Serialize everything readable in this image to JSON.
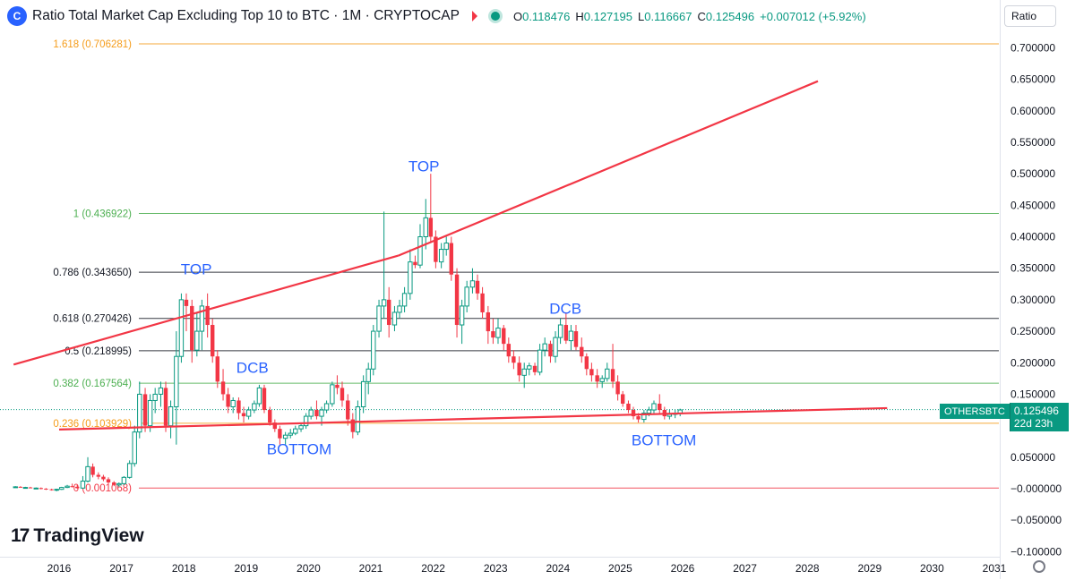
{
  "header": {
    "logo_glyph": "C",
    "title": "Ratio Total Market Cap Excluding Top 10 to BTC · 1M · CRYPTOCAP",
    "ohlc": [
      {
        "k": "O",
        "v": "0.118476"
      },
      {
        "k": "H",
        "v": "0.127195"
      },
      {
        "k": "L",
        "v": "0.116667"
      },
      {
        "k": "C",
        "v": "0.125496"
      }
    ],
    "change": "+0.007012 (+5.92%)",
    "icons": [
      "flag-icon",
      "live-dot-icon"
    ]
  },
  "scale_button": "Ratio",
  "branding": {
    "mark": "17",
    "text": "TradingView"
  },
  "price_tag": {
    "symbol": "OTHERSBTC",
    "value": "0.125496",
    "countdown": "22d 23h"
  },
  "colors": {
    "up": "#089981",
    "down": "#f23645",
    "trendline": "#f23645",
    "label": "#2962ff"
  },
  "chart_data": {
    "type": "candlestick",
    "symbol": "OTHERSBTC",
    "interval": "1M",
    "y_axis": {
      "ticks": [
        0.7,
        0.65,
        0.6,
        0.55,
        0.5,
        0.45,
        0.4,
        0.35,
        0.3,
        0.25,
        0.2,
        0.15,
        0.1,
        0.05,
        0.0,
        -0.05,
        -0.1
      ],
      "tick_labels": [
        "0.700000",
        "0.650000",
        "0.600000",
        "0.550000",
        "0.500000",
        "0.450000",
        "0.400000",
        "0.350000",
        "0.300000",
        "0.250000",
        "0.200000",
        "0.150000",
        "0.100000",
        "0.050000",
        "−0.000000",
        "−0.050000",
        "−0.100000"
      ],
      "range": [
        -0.11,
        0.72
      ]
    },
    "x_axis": {
      "ticks": [
        2016,
        2017,
        2018,
        2019,
        2020,
        2021,
        2022,
        2023,
        2024,
        2025,
        2026,
        2027,
        2028,
        2029,
        2030,
        2031
      ],
      "range": [
        2015.25,
        2031.2
      ]
    },
    "fib_levels": [
      {
        "label": "1.618 (0.706281)",
        "value": 0.706281,
        "color": "#f59c1a"
      },
      {
        "label": "1 (0.436922)",
        "value": 0.436922,
        "color": "#4caf50"
      },
      {
        "label": "0.786 (0.343650)",
        "value": 0.34365,
        "color": "#131722"
      },
      {
        "label": "0.618 (0.270426)",
        "value": 0.270426,
        "color": "#131722"
      },
      {
        "label": "0.5 (0.218995)",
        "value": 0.218995,
        "color": "#131722"
      },
      {
        "label": "0.382 (0.167564)",
        "value": 0.167564,
        "color": "#4caf50"
      },
      {
        "label": "0.236 (0.103929)",
        "value": 0.103929,
        "color": "#f59c1a"
      },
      {
        "label": "0 (0.001068)",
        "value": 0.001068,
        "color": "#f23645"
      }
    ],
    "trendlines": [
      {
        "x1": 2015.27,
        "y1": 0.197,
        "x2": 2021.44,
        "y2": 0.37
      },
      {
        "x1": 2021.44,
        "y1": 0.37,
        "x2": 2028.17,
        "y2": 0.647
      },
      {
        "x1": 2016.0,
        "y1": 0.094,
        "x2": 2029.28,
        "y2": 0.128
      }
    ],
    "annotations": [
      {
        "text": "TOP",
        "x": 2018.2,
        "y": 0.34
      },
      {
        "text": "DCB",
        "x": 2019.1,
        "y": 0.184
      },
      {
        "text": "BOTTOM",
        "x": 2019.85,
        "y": 0.055
      },
      {
        "text": "TOP",
        "x": 2021.85,
        "y": 0.504
      },
      {
        "text": "DCB",
        "x": 2024.12,
        "y": 0.278
      },
      {
        "text": "BOTTOM",
        "x": 2025.7,
        "y": 0.069
      }
    ],
    "last_price": 0.125496,
    "candles": [
      [
        2015.3,
        0.003,
        0.004,
        0.002,
        0.003
      ],
      [
        2015.38,
        0.003,
        0.004,
        0.002,
        0.002
      ],
      [
        2015.46,
        0.002,
        0.003,
        0.001,
        0.002
      ],
      [
        2015.54,
        0.002,
        0.003,
        0.001,
        0.001
      ],
      [
        2015.63,
        0.001,
        0.002,
        0.0,
        0.001
      ],
      [
        2015.71,
        0.001,
        0.002,
        -0.001,
        0.0
      ],
      [
        2015.79,
        0.0,
        0.001,
        -0.002,
        -0.001
      ],
      [
        2015.88,
        -0.001,
        0.0,
        -0.003,
        -0.002
      ],
      [
        2015.96,
        -0.002,
        0.0,
        -0.004,
        -0.001
      ],
      [
        2016.04,
        -0.001,
        0.003,
        -0.002,
        0.002
      ],
      [
        2016.13,
        0.002,
        0.006,
        0.001,
        0.004
      ],
      [
        2016.21,
        0.004,
        0.008,
        0.002,
        0.003
      ],
      [
        2016.29,
        0.003,
        0.006,
        0.0,
        0.001
      ],
      [
        2016.38,
        0.001,
        0.02,
        0.0,
        0.012
      ],
      [
        2016.46,
        0.012,
        0.05,
        0.01,
        0.035
      ],
      [
        2016.54,
        0.035,
        0.04,
        0.018,
        0.022
      ],
      [
        2016.63,
        0.022,
        0.026,
        0.015,
        0.019
      ],
      [
        2016.71,
        0.019,
        0.022,
        0.012,
        0.015
      ],
      [
        2016.79,
        0.015,
        0.018,
        0.008,
        0.01
      ],
      [
        2016.88,
        0.01,
        0.012,
        0.004,
        0.006
      ],
      [
        2016.96,
        0.006,
        0.01,
        0.003,
        0.008
      ],
      [
        2017.04,
        0.008,
        0.02,
        0.006,
        0.018
      ],
      [
        2017.13,
        0.018,
        0.045,
        0.016,
        0.04
      ],
      [
        2017.21,
        0.04,
        0.1,
        0.035,
        0.09
      ],
      [
        2017.29,
        0.09,
        0.17,
        0.08,
        0.15
      ],
      [
        2017.38,
        0.15,
        0.16,
        0.09,
        0.1
      ],
      [
        2017.46,
        0.1,
        0.15,
        0.09,
        0.14
      ],
      [
        2017.54,
        0.14,
        0.16,
        0.12,
        0.15
      ],
      [
        2017.63,
        0.15,
        0.17,
        0.13,
        0.16
      ],
      [
        2017.71,
        0.16,
        0.17,
        0.09,
        0.1
      ],
      [
        2017.79,
        0.1,
        0.14,
        0.08,
        0.13
      ],
      [
        2017.88,
        0.13,
        0.25,
        0.07,
        0.21
      ],
      [
        2017.96,
        0.21,
        0.31,
        0.2,
        0.3
      ],
      [
        2018.04,
        0.3,
        0.31,
        0.25,
        0.29
      ],
      [
        2018.13,
        0.29,
        0.3,
        0.2,
        0.22
      ],
      [
        2018.21,
        0.22,
        0.28,
        0.21,
        0.25
      ],
      [
        2018.29,
        0.25,
        0.3,
        0.22,
        0.29
      ],
      [
        2018.38,
        0.29,
        0.31,
        0.24,
        0.26
      ],
      [
        2018.46,
        0.26,
        0.27,
        0.2,
        0.21
      ],
      [
        2018.54,
        0.21,
        0.22,
        0.16,
        0.17
      ],
      [
        2018.63,
        0.17,
        0.19,
        0.14,
        0.15
      ],
      [
        2018.71,
        0.15,
        0.16,
        0.12,
        0.13
      ],
      [
        2018.79,
        0.13,
        0.145,
        0.12,
        0.14
      ],
      [
        2018.88,
        0.14,
        0.145,
        0.11,
        0.12
      ],
      [
        2018.96,
        0.12,
        0.13,
        0.105,
        0.115
      ],
      [
        2019.04,
        0.115,
        0.13,
        0.11,
        0.125
      ],
      [
        2019.13,
        0.125,
        0.14,
        0.12,
        0.135
      ],
      [
        2019.21,
        0.135,
        0.165,
        0.13,
        0.16
      ],
      [
        2019.29,
        0.16,
        0.165,
        0.12,
        0.125
      ],
      [
        2019.38,
        0.125,
        0.13,
        0.1,
        0.105
      ],
      [
        2019.46,
        0.105,
        0.11,
        0.09,
        0.095
      ],
      [
        2019.54,
        0.095,
        0.1,
        0.07,
        0.08
      ],
      [
        2019.63,
        0.08,
        0.09,
        0.07,
        0.085
      ],
      [
        2019.71,
        0.085,
        0.095,
        0.08,
        0.088
      ],
      [
        2019.79,
        0.088,
        0.1,
        0.085,
        0.095
      ],
      [
        2019.88,
        0.095,
        0.105,
        0.09,
        0.1
      ],
      [
        2019.96,
        0.1,
        0.12,
        0.095,
        0.115
      ],
      [
        2020.04,
        0.115,
        0.13,
        0.11,
        0.125
      ],
      [
        2020.13,
        0.125,
        0.14,
        0.11,
        0.115
      ],
      [
        2020.21,
        0.115,
        0.13,
        0.1,
        0.125
      ],
      [
        2020.29,
        0.125,
        0.14,
        0.12,
        0.135
      ],
      [
        2020.38,
        0.135,
        0.17,
        0.13,
        0.165
      ],
      [
        2020.46,
        0.165,
        0.18,
        0.15,
        0.16
      ],
      [
        2020.54,
        0.16,
        0.17,
        0.13,
        0.14
      ],
      [
        2020.63,
        0.14,
        0.15,
        0.1,
        0.11
      ],
      [
        2020.71,
        0.11,
        0.12,
        0.08,
        0.09
      ],
      [
        2020.79,
        0.09,
        0.14,
        0.085,
        0.13
      ],
      [
        2020.88,
        0.13,
        0.18,
        0.12,
        0.17
      ],
      [
        2020.96,
        0.17,
        0.2,
        0.15,
        0.19
      ],
      [
        2021.04,
        0.19,
        0.26,
        0.18,
        0.25
      ],
      [
        2021.13,
        0.25,
        0.3,
        0.24,
        0.29
      ],
      [
        2021.21,
        0.29,
        0.44,
        0.27,
        0.3
      ],
      [
        2021.29,
        0.3,
        0.32,
        0.24,
        0.26
      ],
      [
        2021.38,
        0.26,
        0.29,
        0.25,
        0.28
      ],
      [
        2021.46,
        0.28,
        0.3,
        0.27,
        0.29
      ],
      [
        2021.54,
        0.29,
        0.32,
        0.28,
        0.31
      ],
      [
        2021.63,
        0.31,
        0.38,
        0.3,
        0.36
      ],
      [
        2021.71,
        0.36,
        0.37,
        0.35,
        0.355
      ],
      [
        2021.79,
        0.355,
        0.42,
        0.35,
        0.4
      ],
      [
        2021.88,
        0.4,
        0.46,
        0.38,
        0.43
      ],
      [
        2021.96,
        0.43,
        0.5,
        0.39,
        0.4
      ],
      [
        2022.04,
        0.4,
        0.41,
        0.35,
        0.36
      ],
      [
        2022.13,
        0.36,
        0.39,
        0.35,
        0.38
      ],
      [
        2022.21,
        0.38,
        0.4,
        0.37,
        0.39
      ],
      [
        2022.29,
        0.39,
        0.4,
        0.33,
        0.34
      ],
      [
        2022.38,
        0.34,
        0.35,
        0.24,
        0.26
      ],
      [
        2022.46,
        0.26,
        0.3,
        0.23,
        0.29
      ],
      [
        2022.54,
        0.29,
        0.33,
        0.28,
        0.32
      ],
      [
        2022.63,
        0.32,
        0.35,
        0.31,
        0.33
      ],
      [
        2022.71,
        0.33,
        0.34,
        0.3,
        0.31
      ],
      [
        2022.79,
        0.31,
        0.32,
        0.27,
        0.28
      ],
      [
        2022.88,
        0.28,
        0.29,
        0.23,
        0.25
      ],
      [
        2022.96,
        0.25,
        0.27,
        0.23,
        0.24
      ],
      [
        2023.04,
        0.24,
        0.27,
        0.23,
        0.255
      ],
      [
        2023.13,
        0.255,
        0.26,
        0.22,
        0.23
      ],
      [
        2023.21,
        0.23,
        0.24,
        0.2,
        0.21
      ],
      [
        2023.29,
        0.21,
        0.22,
        0.19,
        0.2
      ],
      [
        2023.38,
        0.2,
        0.21,
        0.17,
        0.18
      ],
      [
        2023.46,
        0.18,
        0.2,
        0.16,
        0.19
      ],
      [
        2023.54,
        0.19,
        0.2,
        0.18,
        0.195
      ],
      [
        2023.63,
        0.195,
        0.2,
        0.18,
        0.185
      ],
      [
        2023.71,
        0.185,
        0.23,
        0.18,
        0.22
      ],
      [
        2023.79,
        0.22,
        0.24,
        0.21,
        0.23
      ],
      [
        2023.88,
        0.23,
        0.235,
        0.2,
        0.21
      ],
      [
        2023.96,
        0.21,
        0.25,
        0.2,
        0.24
      ],
      [
        2024.04,
        0.24,
        0.27,
        0.23,
        0.26
      ],
      [
        2024.13,
        0.26,
        0.28,
        0.23,
        0.235
      ],
      [
        2024.21,
        0.235,
        0.26,
        0.22,
        0.25
      ],
      [
        2024.29,
        0.25,
        0.26,
        0.22,
        0.225
      ],
      [
        2024.38,
        0.225,
        0.24,
        0.2,
        0.21
      ],
      [
        2024.46,
        0.21,
        0.215,
        0.18,
        0.19
      ],
      [
        2024.54,
        0.19,
        0.2,
        0.17,
        0.18
      ],
      [
        2024.63,
        0.18,
        0.19,
        0.16,
        0.17
      ],
      [
        2024.71,
        0.17,
        0.18,
        0.16,
        0.175
      ],
      [
        2024.79,
        0.175,
        0.2,
        0.17,
        0.19
      ],
      [
        2024.88,
        0.19,
        0.23,
        0.16,
        0.17
      ],
      [
        2024.96,
        0.17,
        0.18,
        0.14,
        0.15
      ],
      [
        2025.04,
        0.15,
        0.155,
        0.13,
        0.135
      ],
      [
        2025.13,
        0.135,
        0.14,
        0.12,
        0.125
      ],
      [
        2025.21,
        0.125,
        0.13,
        0.11,
        0.115
      ],
      [
        2025.29,
        0.115,
        0.12,
        0.105,
        0.11
      ],
      [
        2025.38,
        0.11,
        0.125,
        0.105,
        0.12
      ],
      [
        2025.46,
        0.12,
        0.13,
        0.115,
        0.125
      ],
      [
        2025.54,
        0.125,
        0.14,
        0.12,
        0.135
      ],
      [
        2025.63,
        0.135,
        0.15,
        0.12,
        0.125
      ],
      [
        2025.71,
        0.125,
        0.13,
        0.11,
        0.115
      ],
      [
        2025.79,
        0.115,
        0.125,
        0.11,
        0.118
      ],
      [
        2025.88,
        0.118,
        0.125,
        0.112,
        0.12
      ],
      [
        2025.96,
        0.12,
        0.127,
        0.115,
        0.125
      ]
    ]
  }
}
